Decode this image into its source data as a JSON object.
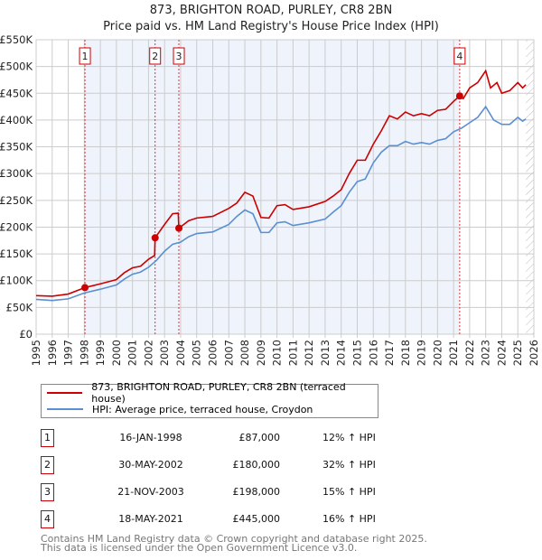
{
  "chart_data": {
    "type": "line",
    "title": "873, BRIGHTON ROAD, PURLEY, CR8 2BN",
    "subtitle": "Price paid vs. HM Land Registry's House Price Index (HPI)",
    "xlim": [
      1995,
      2026
    ],
    "ylim": [
      0,
      550000
    ],
    "x_ticks": [
      "1995",
      "1996",
      "1997",
      "1998",
      "1999",
      "2000",
      "2001",
      "2002",
      "2003",
      "2004",
      "2005",
      "2006",
      "2007",
      "2008",
      "2009",
      "2010",
      "2011",
      "2012",
      "2013",
      "2014",
      "2015",
      "2016",
      "2017",
      "2018",
      "2019",
      "2020",
      "2021",
      "2022",
      "2023",
      "2024",
      "2025",
      "2026"
    ],
    "y_ticks": [
      {
        "v": 0,
        "l": "£0"
      },
      {
        "v": 50000,
        "l": "£50K"
      },
      {
        "v": 100000,
        "l": "£100K"
      },
      {
        "v": 150000,
        "l": "£150K"
      },
      {
        "v": 200000,
        "l": "£200K"
      },
      {
        "v": 250000,
        "l": "£250K"
      },
      {
        "v": 300000,
        "l": "£300K"
      },
      {
        "v": 350000,
        "l": "£350K"
      },
      {
        "v": 400000,
        "l": "£400K"
      },
      {
        "v": 450000,
        "l": "£450K"
      },
      {
        "v": 500000,
        "l": "£500K"
      },
      {
        "v": 550000,
        "l": "£550K"
      }
    ],
    "grid": true,
    "series": [
      {
        "name": "873, BRIGHTON ROAD, PURLEY, CR8 2BN (terraced house)",
        "color": "#cc0000",
        "points": [
          [
            1995,
            72
          ],
          [
            1996,
            71
          ],
          [
            1997,
            75
          ],
          [
            1998.04,
            87
          ],
          [
            1999,
            94
          ],
          [
            2000,
            102
          ],
          [
            2000.5,
            115
          ],
          [
            2001,
            124
          ],
          [
            2001.5,
            127
          ],
          [
            2002,
            140
          ],
          [
            2002.38,
            147
          ],
          [
            2002.41,
            180
          ],
          [
            2003,
            205
          ],
          [
            2003.5,
            225
          ],
          [
            2003.85,
            226
          ],
          [
            2003.89,
            198
          ],
          [
            2004.5,
            212
          ],
          [
            2005,
            217
          ],
          [
            2006,
            220
          ],
          [
            2007,
            235
          ],
          [
            2007.5,
            245
          ],
          [
            2008,
            265
          ],
          [
            2008.5,
            258
          ],
          [
            2009,
            218
          ],
          [
            2009.5,
            217
          ],
          [
            2010,
            240
          ],
          [
            2010.5,
            242
          ],
          [
            2011,
            233
          ],
          [
            2012,
            238
          ],
          [
            2013,
            248
          ],
          [
            2013.5,
            258
          ],
          [
            2014,
            270
          ],
          [
            2014.5,
            300
          ],
          [
            2015,
            325
          ],
          [
            2015.5,
            325
          ],
          [
            2016,
            355
          ],
          [
            2016.5,
            380
          ],
          [
            2017,
            408
          ],
          [
            2017.5,
            402
          ],
          [
            2018,
            415
          ],
          [
            2018.5,
            408
          ],
          [
            2019,
            412
          ],
          [
            2019.5,
            408
          ],
          [
            2020,
            418
          ],
          [
            2020.5,
            420
          ],
          [
            2021,
            435
          ],
          [
            2021.38,
            445
          ],
          [
            2021.6,
            440
          ],
          [
            2022,
            460
          ],
          [
            2022.5,
            470
          ],
          [
            2023,
            492
          ],
          [
            2023.3,
            460
          ],
          [
            2023.7,
            470
          ],
          [
            2024,
            450
          ],
          [
            2024.5,
            455
          ],
          [
            2025,
            470
          ],
          [
            2025.3,
            460
          ],
          [
            2025.5,
            466
          ]
        ]
      },
      {
        "name": "HPI: Average price, terraced house, Croydon",
        "color": "#5b8fd0",
        "points": [
          [
            1995,
            65
          ],
          [
            1996,
            63
          ],
          [
            1997,
            66
          ],
          [
            1998,
            77
          ],
          [
            1999,
            84
          ],
          [
            2000,
            92
          ],
          [
            2000.5,
            103
          ],
          [
            2001,
            112
          ],
          [
            2001.5,
            116
          ],
          [
            2002,
            125
          ],
          [
            2002.5,
            138
          ],
          [
            2003,
            155
          ],
          [
            2003.5,
            168
          ],
          [
            2004,
            172
          ],
          [
            2004.5,
            182
          ],
          [
            2005,
            188
          ],
          [
            2006,
            191
          ],
          [
            2007,
            205
          ],
          [
            2007.5,
            220
          ],
          [
            2008,
            232
          ],
          [
            2008.5,
            225
          ],
          [
            2009,
            190
          ],
          [
            2009.5,
            190
          ],
          [
            2010,
            208
          ],
          [
            2010.5,
            210
          ],
          [
            2011,
            203
          ],
          [
            2012,
            208
          ],
          [
            2013,
            215
          ],
          [
            2013.5,
            228
          ],
          [
            2014,
            240
          ],
          [
            2014.5,
            265
          ],
          [
            2015,
            285
          ],
          [
            2015.5,
            290
          ],
          [
            2016,
            320
          ],
          [
            2016.5,
            340
          ],
          [
            2017,
            352
          ],
          [
            2017.5,
            352
          ],
          [
            2018,
            360
          ],
          [
            2018.5,
            355
          ],
          [
            2019,
            358
          ],
          [
            2019.5,
            355
          ],
          [
            2020,
            362
          ],
          [
            2020.5,
            365
          ],
          [
            2021,
            378
          ],
          [
            2021.5,
            385
          ],
          [
            2022,
            395
          ],
          [
            2022.5,
            405
          ],
          [
            2023,
            425
          ],
          [
            2023.5,
            400
          ],
          [
            2024,
            392
          ],
          [
            2024.5,
            392
          ],
          [
            2025,
            405
          ],
          [
            2025.3,
            398
          ],
          [
            2025.5,
            402
          ]
        ]
      }
    ],
    "sales": [
      {
        "n": "1",
        "x": 1998.04,
        "date": "16-JAN-1998",
        "price": 87000,
        "price_label": "£87,000",
        "hpi": "12% ↑ HPI"
      },
      {
        "n": "2",
        "x": 2002.41,
        "date": "30-MAY-2002",
        "price": 180000,
        "price_label": "£180,000",
        "hpi": "32% ↑ HPI"
      },
      {
        "n": "3",
        "x": 2003.89,
        "date": "21-NOV-2003",
        "price": 198000,
        "price_label": "£198,000",
        "hpi": "15% ↑ HPI"
      },
      {
        "n": "4",
        "x": 2021.38,
        "date": "18-MAY-2021",
        "price": 445000,
        "price_label": "£445,000",
        "hpi": "16% ↑ HPI"
      }
    ],
    "shaded_range": [
      1998.04,
      2021.38
    ],
    "hatched_from": 2025.5
  },
  "footer": {
    "line1": "Contains HM Land Registry data © Crown copyright and database right 2025.",
    "line2": "This data is licensed under the Open Government Licence v3.0."
  }
}
